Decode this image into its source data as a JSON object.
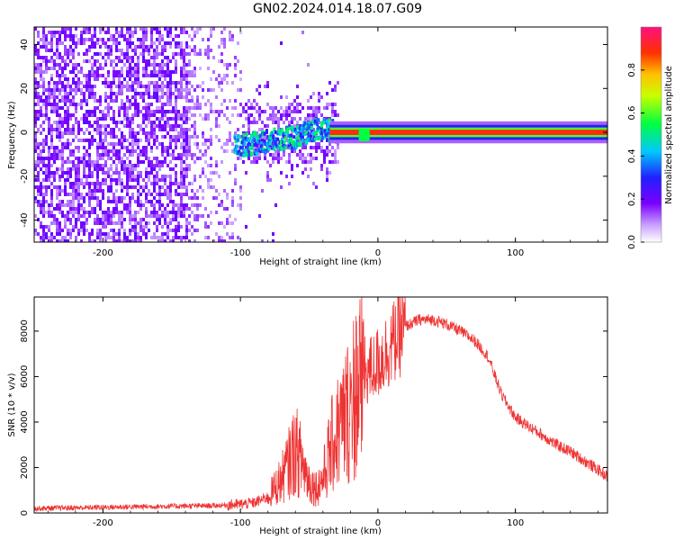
{
  "title": "GN02.2024.014.18.07.G09",
  "chart_data": [
    {
      "type": "heatmap",
      "xlabel": "Height of straight line (km)",
      "ylabel": "Frequency (Hz)",
      "xlim": [
        -250,
        167
      ],
      "ylim": [
        -50,
        48
      ],
      "x_ticks": [
        -200,
        -100,
        0,
        100
      ],
      "y_ticks": [
        -40,
        -20,
        0,
        20,
        40
      ],
      "colorbar": {
        "label": "Normalized spectral amplitude",
        "range": [
          0,
          1
        ],
        "ticks": [
          0.0,
          0.2,
          0.4,
          0.6,
          0.8
        ]
      },
      "signal_track": {
        "description_points_x": [
          -100,
          -80,
          -60,
          -45,
          -30,
          -15,
          -10,
          -5,
          0,
          50,
          100,
          167
        ],
        "frequency": [
          -6,
          -4,
          -2,
          2,
          0,
          0,
          -2,
          0,
          0,
          0,
          0,
          0
        ],
        "amplitude": [
          0.25,
          0.35,
          0.4,
          0.45,
          0.9,
          0.95,
          0.6,
          0.9,
          0.95,
          0.95,
          0.95,
          0.95
        ]
      }
    },
    {
      "type": "line",
      "xlabel": "Height of straight line (km)",
      "ylabel": "SNR (10 * v/v)",
      "xlim": [
        -250,
        167
      ],
      "ylim": [
        0,
        9500
      ],
      "x_ticks": [
        -200,
        -100,
        0,
        100
      ],
      "y_ticks": [
        0,
        2000,
        4000,
        6000,
        8000
      ],
      "color": "#ee3333",
      "series": [
        {
          "x": [
            -250,
            -200,
            -150,
            -120,
            -100,
            -90,
            -80,
            -70,
            -60,
            -55,
            -50,
            -45,
            -40,
            -35,
            -30,
            -25,
            -20,
            -15,
            -10,
            -5,
            0,
            10,
            20,
            30,
            40,
            50,
            60,
            70,
            80,
            90,
            100,
            110,
            120,
            130,
            140,
            150,
            160,
            167
          ],
          "y": [
            200,
            250,
            300,
            320,
            380,
            450,
            700,
            1500,
            2800,
            2200,
            1400,
            1100,
            1500,
            2700,
            3500,
            4000,
            4800,
            5600,
            6200,
            6300,
            6600,
            7400,
            8200,
            8500,
            8500,
            8300,
            8000,
            7600,
            6900,
            5200,
            4200,
            3800,
            3400,
            3000,
            2700,
            2300,
            1900,
            1600
          ]
        }
      ]
    }
  ]
}
